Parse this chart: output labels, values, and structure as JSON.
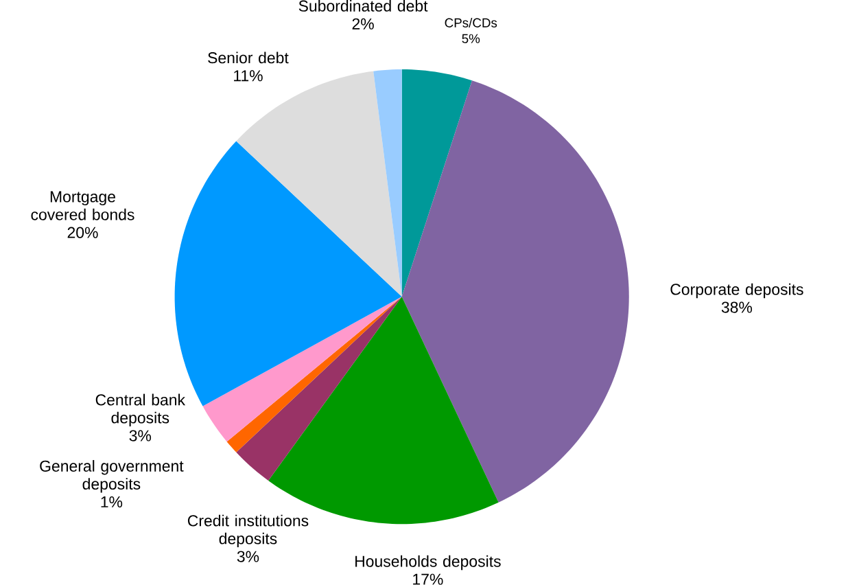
{
  "chart_data": {
    "type": "pie",
    "categories": [
      "CPs/CDs",
      "Corporate deposits",
      "Households deposits",
      "Credit institutions deposits",
      "General government deposits",
      "Central bank deposits",
      "Mortgage covered bonds",
      "Senior debt",
      "Subordinated debt"
    ],
    "values": [
      5,
      38,
      17,
      3,
      1,
      3,
      20,
      11,
      2
    ],
    "value_labels": [
      "5%",
      "38%",
      "17%",
      "3%",
      "1%",
      "3%",
      "20%",
      "11%",
      "2%"
    ],
    "colors": [
      "#009999",
      "#8064a2",
      "#009900",
      "#993366",
      "#ff6600",
      "#ff99cc",
      "#0099ff",
      "#dddddd",
      "#99ccff"
    ]
  }
}
